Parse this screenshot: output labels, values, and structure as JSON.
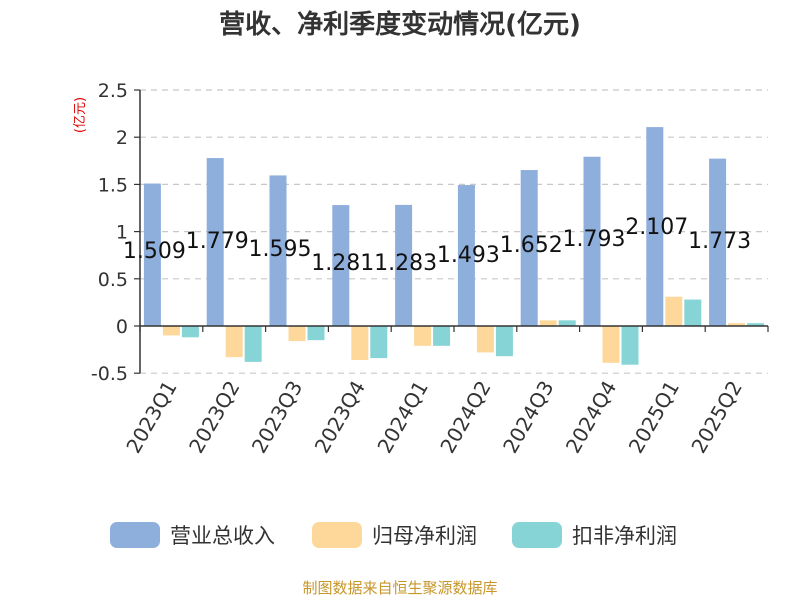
{
  "chart_data": {
    "type": "bar",
    "title": "营收、净利季度变动情况(亿元)",
    "unit_label": "(亿元)",
    "categories": [
      "2023Q1",
      "2023Q2",
      "2023Q3",
      "2023Q4",
      "2024Q1",
      "2024Q2",
      "2024Q3",
      "2024Q4",
      "2025Q1",
      "2025Q2"
    ],
    "series": [
      {
        "name": "营业总收入",
        "color": "#8eaedc",
        "values": [
          1.509,
          1.779,
          1.595,
          1.281,
          1.283,
          1.493,
          1.652,
          1.793,
          2.107,
          1.773
        ],
        "data_labels": [
          "1.509",
          "1.779",
          "1.595",
          "1.281",
          "1.283",
          "1.493",
          "1.652",
          "1.793",
          "2.107",
          "1.773"
        ]
      },
      {
        "name": "归母净利润",
        "color": "#fdd89a",
        "values": [
          -0.1,
          -0.33,
          -0.16,
          -0.36,
          -0.21,
          -0.28,
          0.06,
          -0.39,
          0.31,
          0.03
        ]
      },
      {
        "name": "扣非净利润",
        "color": "#87d4d6",
        "values": [
          -0.12,
          -0.38,
          -0.15,
          -0.34,
          -0.21,
          -0.32,
          0.06,
          -0.41,
          0.28,
          0.03
        ]
      }
    ],
    "ylim": [
      -0.5,
      2.5
    ],
    "yticks": [
      "-0.5",
      "0",
      "0.5",
      "1",
      "1.5",
      "2",
      "2.5"
    ],
    "ytick_values": [
      -0.5,
      0,
      0.5,
      1,
      1.5,
      2,
      2.5
    ],
    "grid": true,
    "legend_position": "bottom",
    "source": "制图数据来自恒生聚源数据库"
  }
}
